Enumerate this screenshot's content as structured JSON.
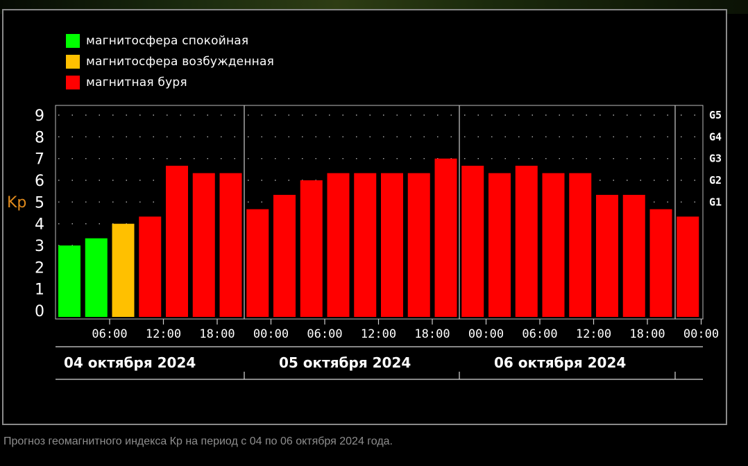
{
  "legend": [
    {
      "label": "магнитосфера спокойная",
      "color": "#00ff00"
    },
    {
      "label": "магнитосфера возбужденная",
      "color": "#ffc000"
    },
    {
      "label": "магнитная буря",
      "color": "#ff0000"
    }
  ],
  "caption": "Прогноз геомагнитного индекса Кр на период с 04 по 06 октября 2024 года.",
  "chart_data": {
    "type": "bar",
    "ylabel": "Kp",
    "ylim": [
      0,
      9
    ],
    "yticks": [
      0,
      1,
      2,
      3,
      4,
      5,
      6,
      7,
      8,
      9
    ],
    "storm_levels": [
      {
        "label": "G1",
        "value": 5
      },
      {
        "label": "G2",
        "value": 6
      },
      {
        "label": "G3",
        "value": 7
      },
      {
        "label": "G4",
        "value": 8
      },
      {
        "label": "G5",
        "value": 9
      }
    ],
    "time_labels": [
      "06:00",
      "12:00",
      "18:00",
      "00:00",
      "06:00",
      "12:00",
      "18:00",
      "00:00",
      "06:00",
      "12:00",
      "18:00",
      "00:00"
    ],
    "days": [
      "04 октября 2024",
      "05 октября 2024",
      "06 октября 2024"
    ],
    "values": [
      3.0,
      3.33,
      4.0,
      4.33,
      6.67,
      6.33,
      6.33,
      4.67,
      5.33,
      6.0,
      6.33,
      6.33,
      6.33,
      6.33,
      7.0,
      6.67,
      6.33,
      6.67,
      6.33,
      6.33,
      5.33,
      5.33,
      4.67,
      4.33
    ],
    "levels": [
      "calm",
      "calm",
      "excited",
      "storm",
      "storm",
      "storm",
      "storm",
      "storm",
      "storm",
      "storm",
      "storm",
      "storm",
      "storm",
      "storm",
      "storm",
      "storm",
      "storm",
      "storm",
      "storm",
      "storm",
      "storm",
      "storm",
      "storm",
      "storm"
    ],
    "level_colors": {
      "calm": "#00ff00",
      "excited": "#ffc000",
      "storm": "#ff0000"
    },
    "grid": "dotted"
  }
}
